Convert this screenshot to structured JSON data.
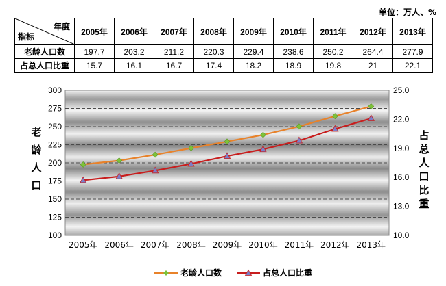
{
  "unit_note": "单位：万人、%",
  "table": {
    "corner_top": "年度",
    "corner_bottom": "指标",
    "years": [
      "2005年",
      "2006年",
      "2007年",
      "2008年",
      "2009年",
      "2010年",
      "2011年",
      "2012年",
      "2013年"
    ],
    "rows": [
      {
        "label": "老龄人口数",
        "values": [
          "197.7",
          "203.2",
          "211.2",
          "220.3",
          "229.4",
          "238.6",
          "250.2",
          "264.4",
          "277.9"
        ]
      },
      {
        "label": "占总人口比重",
        "values": [
          "15.7",
          "16.1",
          "16.7",
          "17.4",
          "18.2",
          "18.9",
          "19.8",
          "21",
          "22.1"
        ]
      }
    ]
  },
  "chart_data": {
    "type": "line",
    "categories": [
      "2005年",
      "2006年",
      "2007年",
      "2008年",
      "2009年",
      "2010年",
      "2011年",
      "2012年",
      "2013年"
    ],
    "y_left": {
      "label": "老龄人口",
      "range": [
        100,
        300
      ],
      "ticks": [
        100,
        125,
        150,
        175,
        200,
        225,
        250,
        275,
        300
      ]
    },
    "y_right": {
      "label": "占总人口比重",
      "range": [
        10.0,
        25.0
      ],
      "ticks": [
        "10.0",
        "13.0",
        "16.0",
        "19.0",
        "22.0",
        "25.0"
      ]
    },
    "series": [
      {
        "name": "老龄人口数",
        "axis": "left",
        "color": "#e8822a",
        "marker": "diamond",
        "marker_color": "#7ec23a",
        "values": [
          197.7,
          203.2,
          211.2,
          220.3,
          229.4,
          238.6,
          250.2,
          264.4,
          277.9
        ]
      },
      {
        "name": "占总人口比重",
        "axis": "right",
        "color": "#c81e1e",
        "marker": "triangle",
        "marker_color": "#7b7fc8",
        "values": [
          15.7,
          16.1,
          16.7,
          17.4,
          18.2,
          18.9,
          19.8,
          21,
          22.1
        ]
      }
    ],
    "legend_position": "bottom",
    "grid": true
  }
}
